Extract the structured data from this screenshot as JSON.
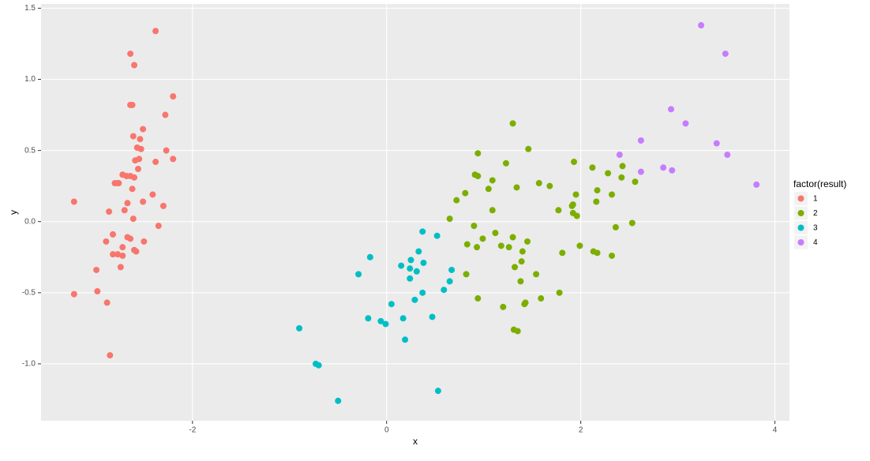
{
  "chart_data": {
    "type": "scatter",
    "xlabel": "x",
    "ylabel": "y",
    "legend_title": "factor(result)",
    "legend": "right",
    "grid": true,
    "xlim": [
      -3.56,
      4.15
    ],
    "ylim": [
      -1.4,
      1.53
    ],
    "xticks": [
      -2,
      0,
      2,
      4
    ],
    "yticks": [
      {
        "value": -1,
        "label": "-1.0"
      },
      -0.5,
      {
        "value": 0,
        "label": "0.0"
      },
      0.5,
      {
        "value": 1,
        "label": "1.0"
      },
      1.5
    ],
    "series": [
      {
        "name": "1",
        "color": "#F8766D",
        "x": [
          -2.38,
          -2.64,
          -2.6,
          -2.2,
          -2.64,
          -2.62,
          -2.28,
          -2.51,
          -2.61,
          -2.54,
          -2.57,
          -2.53,
          -2.27,
          -2.55,
          -2.38,
          -2.2,
          -2.59,
          -2.56,
          -2.72,
          -2.68,
          -2.64,
          -2.6,
          -2.77,
          -2.8,
          -2.76,
          -2.62,
          -2.41,
          -2.51,
          -2.67,
          -2.3,
          -3.22,
          -2.7,
          -2.86,
          -2.61,
          -2.35,
          -2.82,
          -2.89,
          -2.5,
          -2.67,
          -2.64,
          -2.72,
          -2.6,
          -2.82,
          -2.58,
          -2.77,
          -2.72,
          -2.74,
          -2.99,
          -2.98,
          -3.22,
          -2.88,
          -2.85
        ],
        "values": [
          1.34,
          1.18,
          1.1,
          0.88,
          0.82,
          0.82,
          0.75,
          0.65,
          0.6,
          0.58,
          0.52,
          0.51,
          0.5,
          0.44,
          0.42,
          0.44,
          0.43,
          0.37,
          0.33,
          0.32,
          0.32,
          0.31,
          0.27,
          0.27,
          0.27,
          0.23,
          0.19,
          0.14,
          0.13,
          0.11,
          0.14,
          0.08,
          0.07,
          0.02,
          -0.03,
          -0.09,
          -0.14,
          -0.14,
          -0.11,
          -0.12,
          -0.18,
          -0.2,
          -0.23,
          -0.21,
          -0.23,
          -0.24,
          -0.32,
          -0.34,
          -0.49,
          -0.51,
          -0.57,
          -0.94
        ]
      },
      {
        "name": "2",
        "color": "#7CAE00",
        "x": [
          1.3,
          1.46,
          0.94,
          1.23,
          1.93,
          2.12,
          2.43,
          0.91,
          0.94,
          2.28,
          2.42,
          1.09,
          2.17,
          2.56,
          1.57,
          1.68,
          1.34,
          1.05,
          2.32,
          1.95,
          0.81,
          0.72,
          2.16,
          1.92,
          1.91,
          1.77,
          1.09,
          1.92,
          1.96,
          0.65,
          2.36,
          2.53,
          0.9,
          1.12,
          0.99,
          1.3,
          1.45,
          0.83,
          1.18,
          0.93,
          1.26,
          1.99,
          1.81,
          1.4,
          2.13,
          2.17,
          2.32,
          1.39,
          1.32,
          0.82,
          1.54,
          1.38,
          1.78,
          0.94,
          1.59,
          1.43,
          1.42,
          1.2,
          1.31,
          1.35
        ],
        "values": [
          0.69,
          0.51,
          0.48,
          0.41,
          0.42,
          0.38,
          0.39,
          0.33,
          0.32,
          0.34,
          0.31,
          0.29,
          0.22,
          0.28,
          0.27,
          0.25,
          0.24,
          0.23,
          0.19,
          0.19,
          0.2,
          0.15,
          0.14,
          0.12,
          0.11,
          0.08,
          0.08,
          0.06,
          0.04,
          0.02,
          -0.04,
          -0.01,
          -0.03,
          -0.08,
          -0.12,
          -0.11,
          -0.14,
          -0.16,
          -0.17,
          -0.18,
          -0.18,
          -0.17,
          -0.22,
          -0.21,
          -0.21,
          -0.22,
          -0.24,
          -0.28,
          -0.32,
          -0.37,
          -0.37,
          -0.42,
          -0.5,
          -0.54,
          -0.54,
          -0.57,
          -0.58,
          -0.6,
          -0.76,
          -0.77
        ]
      },
      {
        "name": "3",
        "color": "#00BFC4",
        "x": [
          0.37,
          0.52,
          -0.17,
          0.33,
          0.25,
          0.15,
          0.38,
          0.24,
          0.31,
          0.67,
          -0.29,
          0.24,
          0.65,
          0.59,
          0.37,
          0.29,
          0.05,
          0.47,
          -0.19,
          -0.06,
          0.17,
          -0.01,
          -0.9,
          0.19,
          -0.73,
          -0.7,
          0.53,
          -0.5
        ],
        "values": [
          -0.07,
          -0.1,
          -0.25,
          -0.21,
          -0.27,
          -0.31,
          -0.29,
          -0.33,
          -0.35,
          -0.34,
          -0.37,
          -0.4,
          -0.42,
          -0.48,
          -0.5,
          -0.55,
          -0.58,
          -0.67,
          -0.68,
          -0.7,
          -0.68,
          -0.72,
          -0.75,
          -0.83,
          -1.0,
          -1.01,
          -1.19,
          -1.26
        ]
      },
      {
        "name": "4",
        "color": "#C77CFF",
        "x": [
          3.24,
          3.49,
          2.93,
          3.08,
          2.62,
          3.4,
          2.4,
          3.51,
          2.85,
          2.94,
          2.62,
          3.81
        ],
        "values": [
          1.38,
          1.18,
          0.79,
          0.69,
          0.57,
          0.55,
          0.47,
          0.47,
          0.38,
          0.36,
          0.35,
          0.26
        ]
      }
    ]
  }
}
